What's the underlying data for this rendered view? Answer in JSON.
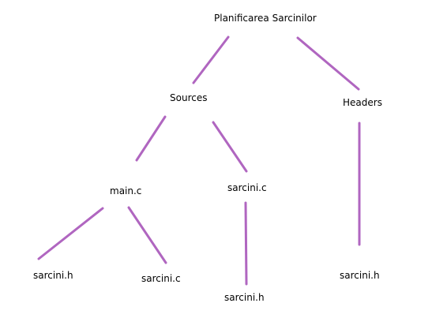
{
  "diagram": {
    "edge_color": "#b066c0",
    "nodes": {
      "root": "Planificarea Sarcinilor",
      "sources": "Sources",
      "headers": "Headers",
      "main_c": "main.c",
      "sarcini_c": "sarcini.c",
      "main_c_child_header": "sarcini.h",
      "main_c_child_source": "sarcini.c",
      "sarcini_c_child_header": "sarcini.h",
      "headers_child": "sarcini.h"
    },
    "edges": [
      {
        "from": "root",
        "to": "sources"
      },
      {
        "from": "root",
        "to": "headers"
      },
      {
        "from": "sources",
        "to": "main_c"
      },
      {
        "from": "sources",
        "to": "sarcini_c"
      },
      {
        "from": "headers",
        "to": "headers_child"
      },
      {
        "from": "main_c",
        "to": "main_c_child_header"
      },
      {
        "from": "main_c",
        "to": "main_c_child_source"
      },
      {
        "from": "sarcini_c",
        "to": "sarcini_c_child_header"
      }
    ]
  }
}
